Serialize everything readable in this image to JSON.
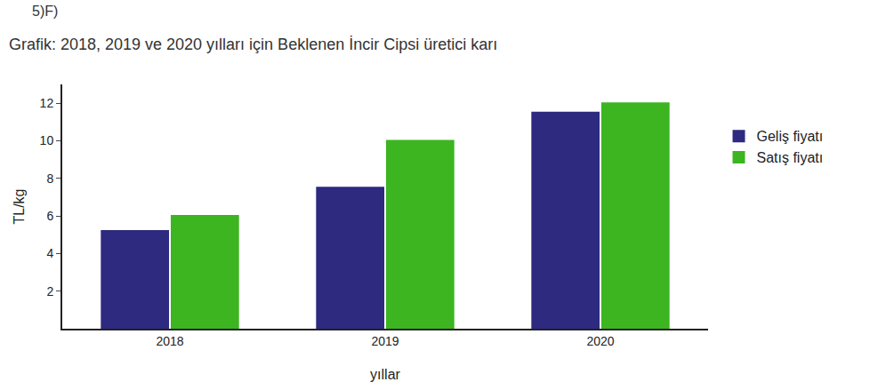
{
  "chart_data": {
    "type": "bar",
    "title": "Grafik: 2018, 2019 ve 2020 yılları için Beklenen İncir Cipsi üretici karı",
    "annotations": [
      "5)F)"
    ],
    "x_label": "yıllar",
    "y_label": "TL/kg",
    "categories": [
      "2018",
      "2019",
      "2020"
    ],
    "series": [
      {
        "name": "Geliş fiyatı",
        "color": "#2e2a80",
        "values": [
          5.2,
          7.5,
          11.5
        ]
      },
      {
        "name": "Satış fiyatı",
        "color": "#3cb521",
        "values": [
          6,
          10,
          12
        ]
      }
    ],
    "ylim": [
      0,
      13
    ],
    "yticks": [
      2,
      4,
      6,
      8,
      10,
      12
    ],
    "grid": false,
    "legend": "right"
  }
}
